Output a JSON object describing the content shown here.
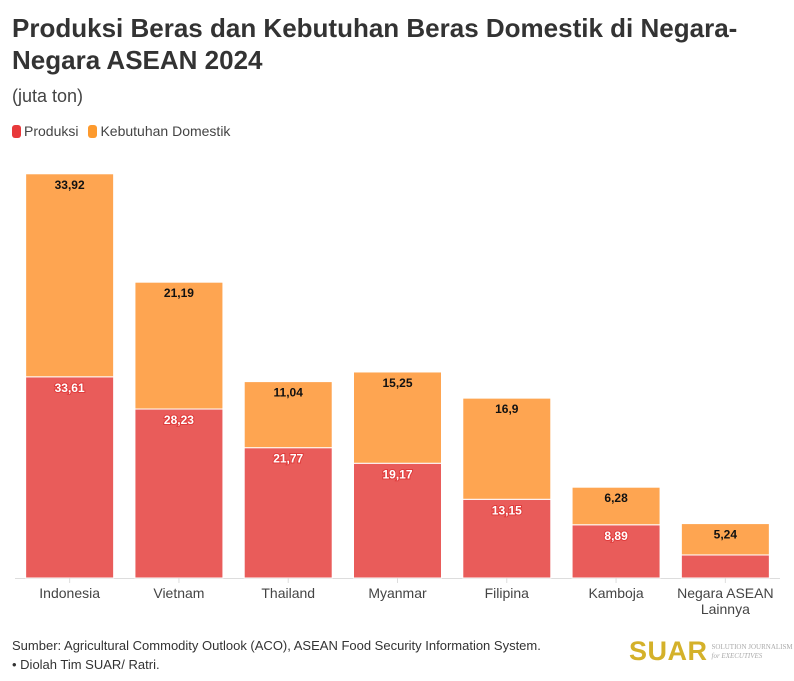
{
  "title": "Produksi Beras dan Kebutuhan Beras Domestik di Negara-Negara ASEAN 2024",
  "subtitle": "(juta ton)",
  "source": "Sumber: Agricultural Commodity Outlook (ACO), ASEAN Food Security Information System.",
  "credit": "• Diolah Tim SUAR/ Ratri.",
  "logo": {
    "name": "SUAR",
    "tagline1": "SOLUTION JOURNALISM",
    "tagline2": "for EXECUTIVES"
  },
  "chart_data": {
    "type": "bar",
    "stacked": true,
    "categories": [
      "Indonesia",
      "Vietnam",
      "Thailand",
      "Myanmar",
      "Filipina",
      "Kamboja",
      "Negara ASEAN Lainnya"
    ],
    "series": [
      {
        "name": "Produksi",
        "color": "#e95c5a",
        "values": [
          33.61,
          28.23,
          21.77,
          19.17,
          13.15,
          8.89,
          3.85
        ],
        "labels": [
          "33,61",
          "28,23",
          "21,77",
          "19,17",
          "13,15",
          "8,89",
          ""
        ]
      },
      {
        "name": "Kebutuhan Domestik",
        "color": "#fea551",
        "values": [
          33.92,
          21.19,
          11.04,
          15.25,
          16.9,
          6.28,
          5.24
        ],
        "labels": [
          "33,92",
          "21,19",
          "11,04",
          "15,25",
          "16,9",
          "6,28",
          "5,24"
        ]
      }
    ],
    "ylim": [
      0,
      70
    ],
    "grid": false,
    "legend": "top-left"
  }
}
